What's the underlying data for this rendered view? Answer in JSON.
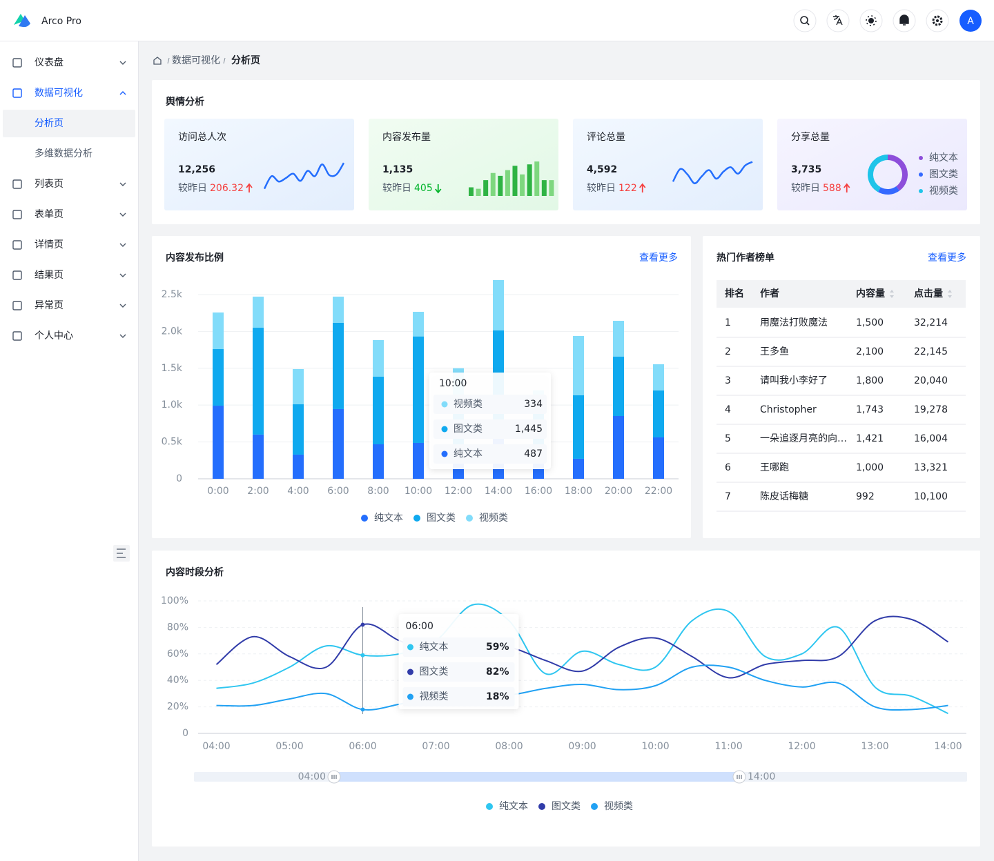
{
  "header": {
    "logo": "Arco Pro",
    "avatar": "A"
  },
  "menu": [
    {
      "label": "仪表盘"
    },
    {
      "label": "数据可视化",
      "active": true,
      "open": true,
      "children": [
        {
          "label": "分析页",
          "active": true
        },
        {
          "label": "多维数据分析"
        }
      ]
    },
    {
      "label": "列表页"
    },
    {
      "label": "表单页"
    },
    {
      "label": "详情页"
    },
    {
      "label": "结果页"
    },
    {
      "label": "异常页"
    },
    {
      "label": "个人中心"
    }
  ],
  "breadcrumb": [
    "数据可视化",
    "分析页"
  ],
  "overview": {
    "title": "舆情分析",
    "cards": [
      {
        "title": "访问总人次",
        "value": "12,256",
        "compare_label": "较昨日",
        "change": "206.32",
        "trend": "up",
        "chart": {
          "type": "line",
          "color": "#246efd",
          "ylim": [
            0,
            100
          ],
          "values": [
            20,
            55,
            40,
            50,
            62,
            42,
            70,
            55,
            88,
            58,
            60,
            92
          ]
        }
      },
      {
        "title": "内容发布量",
        "value": "1,135",
        "compare_label": "较昨日",
        "change": "405",
        "trend": "down",
        "chart": {
          "type": "bar",
          "colors": [
            "#2fb344",
            "#7ed77f"
          ],
          "ylim": [
            0,
            50
          ],
          "values": [
            12,
            10,
            22,
            32,
            28,
            36,
            42,
            30,
            44,
            48,
            22,
            22
          ]
        }
      },
      {
        "title": "评论总量",
        "value": "4,592",
        "compare_label": "较昨日",
        "change": "122",
        "trend": "up",
        "chart": {
          "type": "line",
          "color": "#246efd",
          "ylim": [
            0,
            100
          ],
          "values": [
            40,
            75,
            60,
            35,
            55,
            72,
            48,
            68,
            80,
            62,
            85,
            95
          ]
        }
      },
      {
        "title": "分享总量",
        "value": "3,735",
        "compare_label": "较昨日",
        "change": "588",
        "trend": "up",
        "chart": {
          "type": "pie",
          "labels": [
            "纯文本",
            "图文类",
            "视频类"
          ],
          "colors": [
            "#8d4eda",
            "#3469ff",
            "#1ec4e9"
          ],
          "values": [
            40,
            18,
            42
          ]
        }
      }
    ]
  },
  "content_publish": {
    "more": "查看更多",
    "chart_data": {
      "type": "bar",
      "stacked": true,
      "title": "内容发布比例",
      "categories": [
        "0:00",
        "2:00",
        "4:00",
        "6:00",
        "8:00",
        "10:00",
        "12:00",
        "14:00",
        "16:00",
        "18:00",
        "20:00",
        "22:00"
      ],
      "series": [
        {
          "name": "纯文本",
          "color": "#246efd",
          "values": [
            992,
            600,
            328,
            946,
            468,
            487,
            400,
            600,
            250,
            272,
            852,
            562
          ]
        },
        {
          "name": "图文类",
          "color": "#0fa9ef",
          "values": [
            768,
            1450,
            683,
            1170,
            918,
            1445,
            700,
            1413,
            650,
            861,
            805,
            637
          ],
          "value_labels": [
            "768",
            "1,450",
            "683",
            "1,170",
            "918",
            "1,445",
            "700",
            "1,413",
            "650",
            "861",
            "805",
            "637"
          ]
        },
        {
          "name": "视频类",
          "color": "#82dcfa",
          "values": [
            497,
            422,
            478,
            356,
            496,
            334,
            400,
            684,
            300,
            805,
            487,
            355
          ]
        }
      ],
      "ylim": [
        0,
        2700
      ],
      "yticks": [
        0,
        {
          "value": 500,
          "label": "0.5k"
        },
        {
          "value": 1000,
          "label": "1.0k"
        },
        {
          "value": 1500,
          "label": "1.5k"
        },
        {
          "value": 2000,
          "label": "2.0k"
        },
        {
          "value": 2500,
          "label": "2.5k"
        }
      ],
      "grid": true,
      "legend": "bottom",
      "tooltip_index": 5
    }
  },
  "authors": {
    "title": "热门作者榜单",
    "more": "查看更多",
    "columns": [
      "排名",
      "作者",
      "内容量",
      "点击量"
    ],
    "sortable": [
      false,
      false,
      true,
      true
    ],
    "rows": [
      [
        "1",
        "用魔法打败魔法",
        "1,500",
        "32,214"
      ],
      [
        "2",
        "王多鱼",
        "2,100",
        "22,145"
      ],
      [
        "3",
        "请叫我小李好了",
        "1,800",
        "20,040"
      ],
      [
        "4",
        "Christopher",
        "1,743",
        "19,278"
      ],
      [
        "5",
        "一朵追逐月亮的向…",
        "1,421",
        "16,004"
      ],
      [
        "6",
        "王哪跑",
        "1,000",
        "13,321"
      ],
      [
        "7",
        "陈皮话梅糖",
        "992",
        "10,100"
      ]
    ]
  },
  "period": {
    "chart_data": {
      "type": "line",
      "smooth": true,
      "title": "内容时段分析",
      "categories": [
        "04:00",
        null,
        "05:00",
        null,
        "06:00",
        null,
        "07:00",
        null,
        "08:00",
        null,
        "09:00",
        null,
        "10:00",
        null,
        "11:00",
        null,
        "12:00",
        null,
        "13:00",
        null,
        "14:00"
      ],
      "series": [
        {
          "name": "纯文本",
          "color": "#2fc6f0",
          "values": [
            34,
            38,
            50,
            66,
            59,
            60,
            70,
            97,
            85,
            45,
            62,
            52,
            50,
            85,
            92,
            58,
            60,
            80,
            35,
            28,
            15
          ],
          "value_labels": [
            "34%",
            "38%",
            "50%",
            "66%",
            "59%",
            "60%",
            "70%",
            "97%",
            "85%",
            "45%",
            "62%",
            "52%",
            "50%",
            "85%",
            "92%",
            "58%",
            "60%",
            "80%",
            "35%",
            "28%",
            "15%"
          ]
        },
        {
          "name": "图文类",
          "color": "#313ca9",
          "values": [
            52,
            73,
            58,
            50,
            82,
            70,
            60,
            65,
            65,
            55,
            47,
            65,
            72,
            58,
            42,
            52,
            55,
            58,
            85,
            86,
            69
          ],
          "value_labels": [
            "52%",
            "73%",
            "58%",
            "50%",
            "82%",
            "70%",
            "60%",
            "65%",
            "65%",
            "55%",
            "47%",
            "65%",
            "72%",
            "58%",
            "42%",
            "52%",
            "55%",
            "58%",
            "85%",
            "86%",
            "69%"
          ]
        },
        {
          "name": "视频类",
          "color": "#21a1f3",
          "values": [
            21,
            21,
            26,
            30,
            18,
            22,
            28,
            30,
            29,
            34,
            37,
            33,
            36,
            50,
            50,
            40,
            35,
            38,
            20,
            18,
            21
          ],
          "value_labels": [
            "21%",
            "21%",
            "26%",
            "30%",
            "18%",
            "22%",
            "28%",
            "30%",
            "29%",
            "34%",
            "37%",
            "33%",
            "36%",
            "50%",
            "50%",
            "40%",
            "35%",
            "38%",
            "20%",
            "18%",
            "21%"
          ]
        }
      ],
      "ylim": [
        0,
        100
      ],
      "yticks": [
        0,
        {
          "value": 20,
          "label": "20%"
        },
        {
          "value": 40,
          "label": "40%"
        },
        {
          "value": 60,
          "label": "60%"
        },
        {
          "value": 80,
          "label": "80%"
        },
        {
          "value": 100,
          "label": "100%"
        }
      ],
      "grid": true,
      "legend": "bottom",
      "tooltip_index": 4,
      "data_zoom": true
    }
  }
}
